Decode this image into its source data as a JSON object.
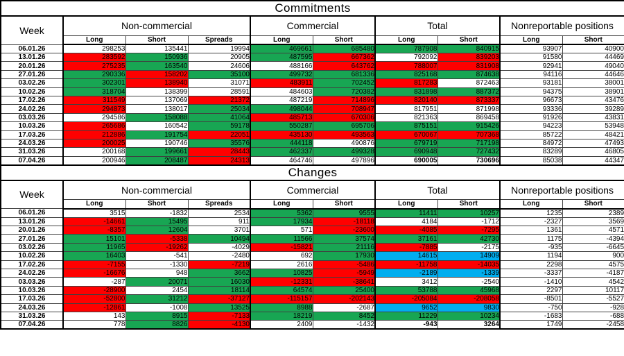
{
  "colors": {
    "w": "#FFFFFF",
    "g": "#18A653",
    "r": "#FF0000",
    "b": "#00AEEF"
  },
  "tables": [
    {
      "title": "Commitments",
      "week_label": "Week",
      "groups": [
        "Non-commercial",
        "Commercial",
        "Total",
        "Nonreportable positions"
      ],
      "columns": [
        "Long",
        "Short",
        "Spreads",
        "Long",
        "Short",
        "Long",
        "Short",
        "Long",
        "Short"
      ],
      "rows": [
        [
          "06.01.26",
          [
            "298253",
            "w"
          ],
          [
            "135441",
            "w"
          ],
          [
            "19994",
            "w"
          ],
          [
            "469661",
            "g"
          ],
          [
            "685480",
            "g"
          ],
          [
            "787908",
            "g"
          ],
          [
            "840915",
            "g"
          ],
          [
            "93907",
            "w"
          ],
          [
            "40900",
            "w"
          ]
        ],
        [
          "13.01.26",
          [
            "283592",
            "r"
          ],
          [
            "150936",
            "g"
          ],
          [
            "20905",
            "w"
          ],
          [
            "487595",
            "g"
          ],
          [
            "667362",
            "r"
          ],
          [
            "792092",
            "w"
          ],
          [
            "839203",
            "r"
          ],
          [
            "91580",
            "w"
          ],
          [
            "44469",
            "w"
          ]
        ],
        [
          "20.01.26",
          [
            "275235",
            "r"
          ],
          [
            "163540",
            "g"
          ],
          [
            "24606",
            "w"
          ],
          [
            "488166",
            "w"
          ],
          [
            "643762",
            "r"
          ],
          [
            "788007",
            "r"
          ],
          [
            "831908",
            "r"
          ],
          [
            "92941",
            "w"
          ],
          [
            "49040",
            "w"
          ]
        ],
        [
          "27.01.26",
          [
            "290336",
            "g"
          ],
          [
            "158202",
            "r"
          ],
          [
            "35100",
            "g"
          ],
          [
            "499732",
            "g"
          ],
          [
            "681336",
            "g"
          ],
          [
            "825168",
            "g"
          ],
          [
            "874638",
            "g"
          ],
          [
            "94116",
            "w"
          ],
          [
            "44646",
            "w"
          ]
        ],
        [
          "03.02.26",
          [
            "302301",
            "g"
          ],
          [
            "138940",
            "r"
          ],
          [
            "31071",
            "w"
          ],
          [
            "483911",
            "r"
          ],
          [
            "702452",
            "g"
          ],
          [
            "817283",
            "r"
          ],
          [
            "872463",
            "w"
          ],
          [
            "93181",
            "w"
          ],
          [
            "38001",
            "w"
          ]
        ],
        [
          "10.02.26",
          [
            "318704",
            "g"
          ],
          [
            "138399",
            "w"
          ],
          [
            "28591",
            "w"
          ],
          [
            "484603",
            "w"
          ],
          [
            "720382",
            "g"
          ],
          [
            "831898",
            "g"
          ],
          [
            "887372",
            "g"
          ],
          [
            "94375",
            "w"
          ],
          [
            "38901",
            "w"
          ]
        ],
        [
          "17.02.26",
          [
            "311549",
            "r"
          ],
          [
            "137069",
            "w"
          ],
          [
            "21372",
            "r"
          ],
          [
            "487219",
            "w"
          ],
          [
            "714896",
            "r"
          ],
          [
            "820140",
            "r"
          ],
          [
            "873337",
            "r"
          ],
          [
            "96673",
            "w"
          ],
          [
            "43476",
            "w"
          ]
        ],
        [
          "24.02.26",
          [
            "294873",
            "r"
          ],
          [
            "138017",
            "w"
          ],
          [
            "25034",
            "g"
          ],
          [
            "498044",
            "g"
          ],
          [
            "708947",
            "r"
          ],
          [
            "817951",
            "w"
          ],
          [
            "871998",
            "w"
          ],
          [
            "93336",
            "w"
          ],
          [
            "39289",
            "w"
          ]
        ],
        [
          "03.03.26",
          [
            "294586",
            "w"
          ],
          [
            "158088",
            "g"
          ],
          [
            "41064",
            "g"
          ],
          [
            "485713",
            "r"
          ],
          [
            "670306",
            "r"
          ],
          [
            "821363",
            "w"
          ],
          [
            "869458",
            "w"
          ],
          [
            "91926",
            "w"
          ],
          [
            "43831",
            "w"
          ]
        ],
        [
          "10.03.26",
          [
            "265686",
            "r"
          ],
          [
            "160542",
            "w"
          ],
          [
            "59178",
            "g"
          ],
          [
            "550287",
            "g"
          ],
          [
            "695706",
            "g"
          ],
          [
            "875151",
            "g"
          ],
          [
            "915426",
            "g"
          ],
          [
            "94223",
            "w"
          ],
          [
            "53948",
            "w"
          ]
        ],
        [
          "17.03.26",
          [
            "212886",
            "r"
          ],
          [
            "191754",
            "g"
          ],
          [
            "22051",
            "r"
          ],
          [
            "435130",
            "r"
          ],
          [
            "493563",
            "r"
          ],
          [
            "670067",
            "r"
          ],
          [
            "707368",
            "r"
          ],
          [
            "85722",
            "w"
          ],
          [
            "48421",
            "w"
          ]
        ],
        [
          "24.03.26",
          [
            "200025",
            "r"
          ],
          [
            "190746",
            "w"
          ],
          [
            "35576",
            "g"
          ],
          [
            "444118",
            "g"
          ],
          [
            "490876",
            "w"
          ],
          [
            "679719",
            "g"
          ],
          [
            "717198",
            "g"
          ],
          [
            "84972",
            "w"
          ],
          [
            "47493",
            "w"
          ]
        ],
        [
          "31.03.26",
          [
            "200168",
            "w"
          ],
          [
            "199661",
            "g"
          ],
          [
            "28443",
            "r"
          ],
          [
            "462337",
            "g"
          ],
          [
            "499328",
            "g"
          ],
          [
            "690948",
            "g"
          ],
          [
            "727432",
            "g"
          ],
          [
            "83289",
            "w"
          ],
          [
            "46805",
            "w"
          ]
        ],
        [
          "07.04.26",
          [
            "200946",
            "w"
          ],
          [
            "208487",
            "g"
          ],
          [
            "24313",
            "r"
          ],
          [
            "464746",
            "w"
          ],
          [
            "497896",
            "w"
          ],
          [
            "690005",
            "w",
            "bold"
          ],
          [
            "730696",
            "w",
            "bold"
          ],
          [
            "85038",
            "w"
          ],
          [
            "44347",
            "w"
          ]
        ]
      ]
    },
    {
      "title": "Changes",
      "week_label": "Week",
      "groups": [
        "Non-commercial",
        "Commercial",
        "Total",
        "Nonreportable positions"
      ],
      "columns": [
        "Long",
        "Short",
        "Spreads",
        "Long",
        "Short",
        "Long",
        "Short",
        "Long",
        "Short"
      ],
      "rows": [
        [
          "06.01.26",
          [
            "3515",
            "w"
          ],
          [
            "-1832",
            "w"
          ],
          [
            "2534",
            "w"
          ],
          [
            "5362",
            "g"
          ],
          [
            "9555",
            "g"
          ],
          [
            "11411",
            "g"
          ],
          [
            "10257",
            "g"
          ],
          [
            "1235",
            "w"
          ],
          [
            "2389",
            "w"
          ]
        ],
        [
          "13.01.26",
          [
            "-14661",
            "r"
          ],
          [
            "15495",
            "g"
          ],
          [
            "911",
            "w"
          ],
          [
            "17934",
            "g"
          ],
          [
            "-18118",
            "r"
          ],
          [
            "4184",
            "w"
          ],
          [
            "-1712",
            "w"
          ],
          [
            "-2327",
            "w"
          ],
          [
            "3569",
            "w"
          ]
        ],
        [
          "20.01.26",
          [
            "-8357",
            "r"
          ],
          [
            "12604",
            "g"
          ],
          [
            "3701",
            "w"
          ],
          [
            "571",
            "w"
          ],
          [
            "-23600",
            "r"
          ],
          [
            "-4085",
            "r"
          ],
          [
            "-7295",
            "r"
          ],
          [
            "1361",
            "w"
          ],
          [
            "4571",
            "w"
          ]
        ],
        [
          "27.01.26",
          [
            "15101",
            "g"
          ],
          [
            "-5338",
            "r"
          ],
          [
            "10494",
            "g"
          ],
          [
            "11566",
            "g"
          ],
          [
            "37574",
            "g"
          ],
          [
            "37161",
            "g"
          ],
          [
            "42730",
            "g"
          ],
          [
            "1175",
            "w"
          ],
          [
            "-4394",
            "w"
          ]
        ],
        [
          "03.02.26",
          [
            "11965",
            "g"
          ],
          [
            "-19262",
            "r"
          ],
          [
            "-4029",
            "w"
          ],
          [
            "-15821",
            "r"
          ],
          [
            "21116",
            "g"
          ],
          [
            "-7885",
            "r"
          ],
          [
            "-2175",
            "w"
          ],
          [
            "-935",
            "w"
          ],
          [
            "-6645",
            "w"
          ]
        ],
        [
          "10.02.26",
          [
            "16403",
            "g"
          ],
          [
            "-541",
            "w"
          ],
          [
            "-2480",
            "w"
          ],
          [
            "692",
            "w"
          ],
          [
            "17930",
            "g"
          ],
          [
            "14615",
            "b"
          ],
          [
            "14909",
            "b"
          ],
          [
            "1194",
            "w"
          ],
          [
            "900",
            "w"
          ]
        ],
        [
          "17.02.26",
          [
            "-7155",
            "r"
          ],
          [
            "-1330",
            "w"
          ],
          [
            "-7219",
            "r"
          ],
          [
            "2616",
            "w"
          ],
          [
            "-5486",
            "r"
          ],
          [
            "-11758",
            "r"
          ],
          [
            "-14035",
            "r"
          ],
          [
            "2298",
            "w"
          ],
          [
            "4575",
            "w"
          ]
        ],
        [
          "24.02.26",
          [
            "-16676",
            "r"
          ],
          [
            "948",
            "w"
          ],
          [
            "3662",
            "g"
          ],
          [
            "10825",
            "g"
          ],
          [
            "-5949",
            "r"
          ],
          [
            "-2189",
            "b"
          ],
          [
            "-1339",
            "b"
          ],
          [
            "-3337",
            "w"
          ],
          [
            "-4187",
            "w"
          ]
        ],
        [
          "03.03.26",
          [
            "-287",
            "w"
          ],
          [
            "20071",
            "g"
          ],
          [
            "16030",
            "g"
          ],
          [
            "-12331",
            "r"
          ],
          [
            "-38641",
            "r"
          ],
          [
            "3412",
            "w"
          ],
          [
            "-2540",
            "w"
          ],
          [
            "-1410",
            "w"
          ],
          [
            "4542",
            "w"
          ]
        ],
        [
          "10.03.26",
          [
            "-28900",
            "r"
          ],
          [
            "2454",
            "w"
          ],
          [
            "18114",
            "g"
          ],
          [
            "64574",
            "g"
          ],
          [
            "25400",
            "g"
          ],
          [
            "53788",
            "g"
          ],
          [
            "45968",
            "g"
          ],
          [
            "2297",
            "w"
          ],
          [
            "10117",
            "w"
          ]
        ],
        [
          "17.03.26",
          [
            "-52800",
            "r"
          ],
          [
            "31212",
            "g"
          ],
          [
            "-37127",
            "r"
          ],
          [
            "-115157",
            "r"
          ],
          [
            "-202143",
            "r"
          ],
          [
            "-205084",
            "r"
          ],
          [
            "-208058",
            "r"
          ],
          [
            "-8501",
            "w"
          ],
          [
            "-5527",
            "w"
          ]
        ],
        [
          "24.03.26",
          [
            "-12861",
            "r"
          ],
          [
            "-1008",
            "w"
          ],
          [
            "13525",
            "g"
          ],
          [
            "8988",
            "g"
          ],
          [
            "-2687",
            "w"
          ],
          [
            "9652",
            "b"
          ],
          [
            "9830",
            "b"
          ],
          [
            "-750",
            "w"
          ],
          [
            "-928",
            "w"
          ]
        ],
        [
          "31.03.26",
          [
            "143",
            "w"
          ],
          [
            "8915",
            "g"
          ],
          [
            "-7133",
            "r"
          ],
          [
            "18219",
            "g"
          ],
          [
            "8452",
            "g"
          ],
          [
            "11229",
            "g"
          ],
          [
            "10234",
            "g"
          ],
          [
            "-1683",
            "w"
          ],
          [
            "-688",
            "w"
          ]
        ],
        [
          "07.04.26",
          [
            "778",
            "w"
          ],
          [
            "8826",
            "g"
          ],
          [
            "-4130",
            "r"
          ],
          [
            "2409",
            "w"
          ],
          [
            "-1432",
            "w"
          ],
          [
            "-943",
            "w",
            "bold"
          ],
          [
            "3264",
            "w",
            "bold"
          ],
          [
            "1749",
            "w"
          ],
          [
            "-2458",
            "w"
          ]
        ]
      ]
    }
  ]
}
